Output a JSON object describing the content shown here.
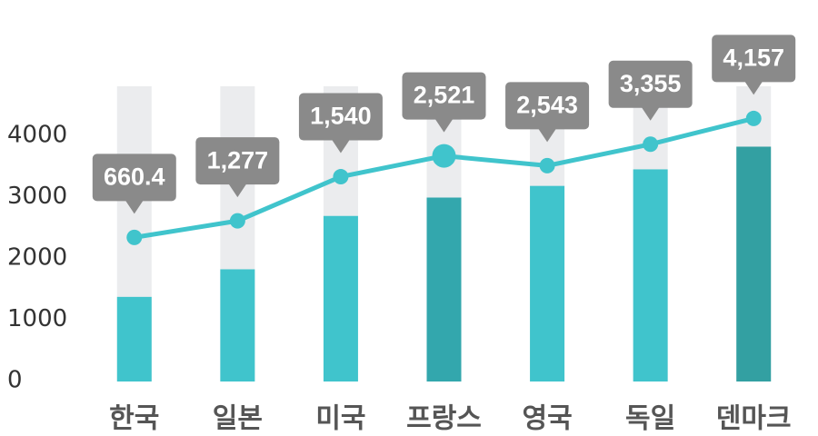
{
  "chart_data": {
    "type": "bar",
    "categories": [
      "한국",
      "일본",
      "미국",
      "프랑스",
      "영국",
      "독일",
      "덴마크"
    ],
    "yticks": [
      0,
      1000,
      2000,
      3000,
      4000
    ],
    "ylim": [
      0,
      4600
    ],
    "grid": false,
    "series": [
      {
        "type": "bar",
        "values": [
          1380,
          1830,
          2700,
          3000,
          3190,
          3460,
          3830
        ],
        "colors": [
          "#40c4cc",
          "#40c4cc",
          "#40c4cc",
          "#33a7ad",
          "#40c4cc",
          "#40c4cc",
          "#33a0a2"
        ],
        "background_color": "#ebecee"
      },
      {
        "type": "line",
        "values": [
          2350,
          2620,
          3340,
          3680,
          3520,
          3870,
          4290
        ],
        "color": "#40c4cc",
        "highlight_index": 3
      }
    ],
    "callouts": [
      "660.4",
      "1,277",
      "1,540",
      "2,521",
      "2,543",
      "3,355",
      "4,157"
    ],
    "callout_color": "#8a8a8a"
  }
}
